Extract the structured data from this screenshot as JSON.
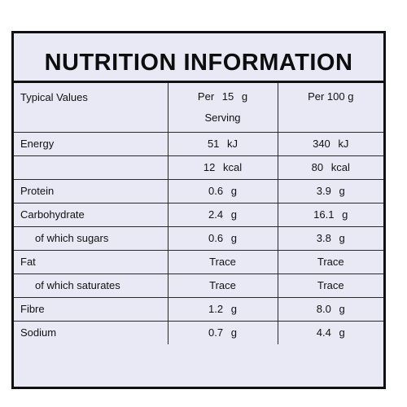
{
  "title": "NUTRITION INFORMATION",
  "headers": {
    "label": "Typical Values",
    "per_serving_line1": "Per 15 g",
    "per_serving_line2": "Serving",
    "per_100g": "Per 100 g"
  },
  "rows": [
    {
      "label": "Energy",
      "serving": "51 kJ",
      "per100": "340 kJ"
    },
    {
      "label": "",
      "serving": "12 kcal",
      "per100": "80 kcal"
    },
    {
      "label": "Protein",
      "serving": "0.6 g",
      "per100": "3.9 g"
    },
    {
      "label": "Carbohydrate",
      "serving": "2.4 g",
      "per100": "16.1 g"
    },
    {
      "label": "of which sugars",
      "serving": "0.6 g",
      "per100": "3.8 g"
    },
    {
      "label": "Fat",
      "serving": "Trace",
      "per100": "Trace"
    },
    {
      "label": "of which saturates",
      "serving": "Trace",
      "per100": "Trace"
    },
    {
      "label": "Fibre",
      "serving": "1.2 g",
      "per100": "8.0 g"
    },
    {
      "label": "Sodium",
      "serving": "0.7 g",
      "per100": "4.4 g"
    }
  ]
}
